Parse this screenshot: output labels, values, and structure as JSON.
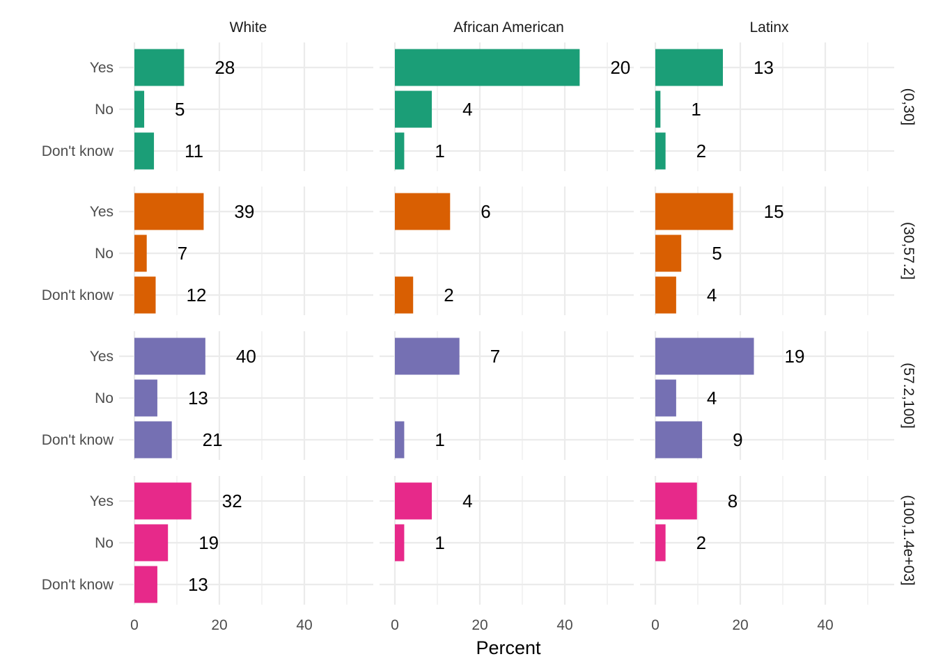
{
  "chart_data": {
    "type": "bar",
    "orientation": "horizontal",
    "xlabel": "Percent",
    "ylabel": "",
    "xlim": [
      0,
      57
    ],
    "x_ticks": [
      0,
      20,
      40
    ],
    "x_tick_labels": [
      "0",
      "20",
      "40"
    ],
    "grid": true,
    "legend": "none",
    "categories": [
      "Yes",
      "No",
      "Don't know"
    ],
    "columns": [
      "White",
      "African American",
      "Latinx"
    ],
    "rows": [
      "(0,30]",
      "(30,57.2]",
      "(57.2,100]",
      "(100,1.4e+03]"
    ],
    "row_colors": [
      "#1b9e77",
      "#d95f02",
      "#7570b3",
      "#e7298a"
    ],
    "panels": [
      {
        "row": "(0,30]",
        "column": "White",
        "percent": [
          11.7,
          2.3,
          4.6
        ],
        "counts": [
          "28",
          "5",
          "11"
        ]
      },
      {
        "row": "(0,30]",
        "column": "African American",
        "percent": [
          43.5,
          8.7,
          2.2
        ],
        "counts": [
          "20",
          "4",
          "1"
        ]
      },
      {
        "row": "(0,30]",
        "column": "Latinx",
        "percent": [
          15.9,
          1.2,
          2.4
        ],
        "counts": [
          "13",
          "1",
          "2"
        ]
      },
      {
        "row": "(30,57.2]",
        "column": "White",
        "percent": [
          16.3,
          2.9,
          5.0
        ],
        "counts": [
          "39",
          "7",
          "12"
        ]
      },
      {
        "row": "(30,57.2]",
        "column": "African American",
        "percent": [
          13.0,
          null,
          4.3
        ],
        "counts": [
          "6",
          "",
          "2"
        ]
      },
      {
        "row": "(30,57.2]",
        "column": "Latinx",
        "percent": [
          18.3,
          6.1,
          4.9
        ],
        "counts": [
          "15",
          "5",
          "4"
        ]
      },
      {
        "row": "(57.2,100]",
        "column": "White",
        "percent": [
          16.7,
          5.4,
          8.8
        ],
        "counts": [
          "40",
          "13",
          "21"
        ]
      },
      {
        "row": "(57.2,100]",
        "column": "African American",
        "percent": [
          15.2,
          null,
          2.2
        ],
        "counts": [
          "7",
          "",
          "1"
        ]
      },
      {
        "row": "(57.2,100]",
        "column": "Latinx",
        "percent": [
          23.2,
          4.9,
          11.0
        ],
        "counts": [
          "19",
          "4",
          "9"
        ]
      },
      {
        "row": "(100,1.4e+03]",
        "column": "White",
        "percent": [
          13.4,
          7.9,
          5.4
        ],
        "counts": [
          "32",
          "19",
          "13"
        ]
      },
      {
        "row": "(100,1.4e+03]",
        "column": "African American",
        "percent": [
          8.7,
          2.2,
          null
        ],
        "counts": [
          "4",
          "1",
          ""
        ]
      },
      {
        "row": "(100,1.4e+03]",
        "column": "Latinx",
        "percent": [
          9.8,
          2.4,
          null
        ],
        "counts": [
          "8",
          "2",
          ""
        ]
      }
    ]
  }
}
